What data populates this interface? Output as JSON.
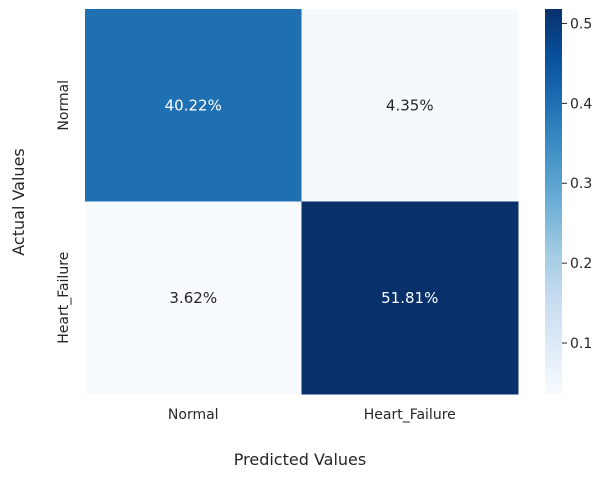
{
  "chart_data": {
    "type": "heatmap",
    "title": "",
    "xlabel": "Predicted Values",
    "ylabel": "Actual Values",
    "x_categories": [
      "Normal",
      "Heart_Failure"
    ],
    "y_categories": [
      "Normal",
      "Heart_Failure"
    ],
    "values": [
      [
        0.4022,
        0.0435
      ],
      [
        0.0362,
        0.5181
      ]
    ],
    "cell_labels": [
      [
        "40.22%",
        "4.35%"
      ],
      [
        "3.62%",
        "51.81%"
      ]
    ],
    "colormap": "Blues",
    "colorbar": {
      "range": [
        0.0362,
        0.5181
      ],
      "ticks": [
        0.1,
        0.2,
        0.3,
        0.4,
        0.5
      ],
      "tick_labels": [
        "0.1",
        "0.2",
        "0.3",
        "0.4",
        "0.5"
      ]
    }
  }
}
